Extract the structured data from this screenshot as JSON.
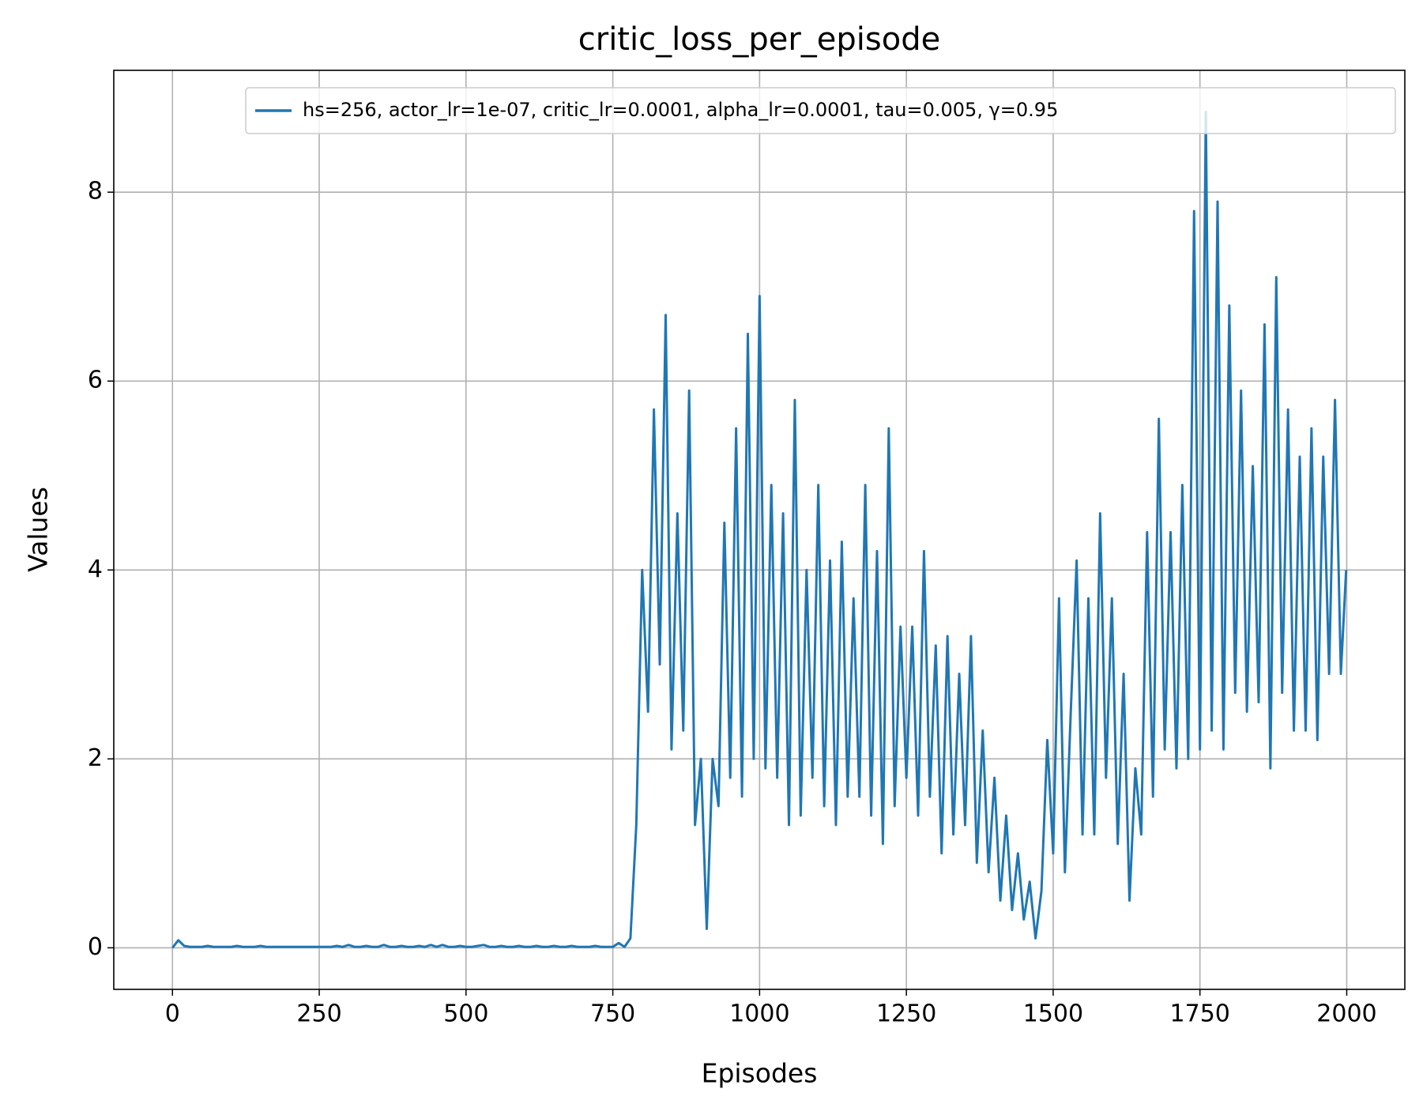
{
  "chart_data": {
    "type": "line",
    "title": "critic_loss_per_episode",
    "x_label": "Episodes",
    "y_label": "Values",
    "x": [
      0,
      10,
      20,
      30,
      40,
      50,
      60,
      70,
      80,
      90,
      100,
      110,
      120,
      130,
      140,
      150,
      160,
      170,
      180,
      190,
      200,
      210,
      220,
      230,
      240,
      250,
      260,
      270,
      280,
      290,
      300,
      310,
      320,
      330,
      340,
      350,
      360,
      370,
      380,
      390,
      400,
      410,
      420,
      430,
      440,
      450,
      460,
      470,
      480,
      490,
      500,
      510,
      520,
      530,
      540,
      550,
      560,
      570,
      580,
      590,
      600,
      610,
      620,
      630,
      640,
      650,
      660,
      670,
      680,
      690,
      700,
      710,
      720,
      730,
      740,
      750,
      760,
      770,
      780,
      790,
      800,
      810,
      820,
      830,
      840,
      850,
      860,
      870,
      880,
      890,
      900,
      910,
      920,
      930,
      940,
      950,
      960,
      970,
      980,
      990,
      1000,
      1010,
      1020,
      1030,
      1040,
      1050,
      1060,
      1070,
      1080,
      1090,
      1100,
      1110,
      1120,
      1130,
      1140,
      1150,
      1160,
      1170,
      1180,
      1190,
      1200,
      1210,
      1220,
      1230,
      1240,
      1250,
      1260,
      1270,
      1280,
      1290,
      1300,
      1310,
      1320,
      1330,
      1340,
      1350,
      1360,
      1370,
      1380,
      1390,
      1400,
      1410,
      1420,
      1430,
      1440,
      1450,
      1460,
      1470,
      1480,
      1490,
      1500,
      1510,
      1520,
      1530,
      1540,
      1550,
      1560,
      1570,
      1580,
      1590,
      1600,
      1610,
      1620,
      1630,
      1640,
      1650,
      1660,
      1670,
      1680,
      1690,
      1700,
      1710,
      1720,
      1730,
      1740,
      1750,
      1760,
      1770,
      1780,
      1790,
      1800,
      1810,
      1820,
      1830,
      1840,
      1850,
      1860,
      1870,
      1880,
      1890,
      1900,
      1910,
      1920,
      1930,
      1940,
      1950,
      1960,
      1970,
      1980,
      1990,
      1999
    ],
    "series": [
      {
        "name": "hs=256, actor_lr=1e-07, critic_lr=0.0001, alpha_lr=0.0001, tau=0.005, γ=0.95",
        "color": "#1f77b4",
        "values": [
          0.0,
          0.08,
          0.02,
          0.01,
          0.01,
          0.01,
          0.02,
          0.01,
          0.01,
          0.01,
          0.01,
          0.02,
          0.01,
          0.01,
          0.01,
          0.02,
          0.01,
          0.01,
          0.01,
          0.01,
          0.01,
          0.01,
          0.01,
          0.01,
          0.01,
          0.01,
          0.01,
          0.01,
          0.02,
          0.01,
          0.03,
          0.01,
          0.01,
          0.02,
          0.01,
          0.01,
          0.03,
          0.01,
          0.01,
          0.02,
          0.01,
          0.01,
          0.02,
          0.01,
          0.03,
          0.01,
          0.03,
          0.01,
          0.01,
          0.02,
          0.01,
          0.01,
          0.02,
          0.03,
          0.01,
          0.01,
          0.02,
          0.01,
          0.01,
          0.02,
          0.01,
          0.01,
          0.02,
          0.01,
          0.01,
          0.02,
          0.01,
          0.01,
          0.02,
          0.01,
          0.01,
          0.01,
          0.02,
          0.01,
          0.01,
          0.01,
          0.05,
          0.01,
          0.1,
          1.3,
          4.0,
          2.5,
          5.7,
          3.0,
          6.7,
          2.1,
          4.6,
          2.3,
          5.9,
          1.3,
          2.0,
          0.2,
          2.0,
          1.5,
          4.5,
          1.8,
          5.5,
          1.6,
          6.5,
          2.0,
          6.9,
          1.9,
          4.9,
          1.8,
          4.6,
          1.3,
          5.8,
          1.4,
          4.0,
          1.8,
          4.9,
          1.5,
          4.1,
          1.3,
          4.3,
          1.6,
          3.7,
          1.6,
          4.9,
          1.4,
          4.2,
          1.1,
          5.5,
          1.5,
          3.4,
          1.8,
          3.4,
          1.4,
          4.2,
          1.6,
          3.2,
          1.0,
          3.3,
          1.2,
          2.9,
          1.3,
          3.3,
          0.9,
          2.3,
          0.8,
          1.8,
          0.5,
          1.4,
          0.4,
          1.0,
          0.3,
          0.7,
          0.1,
          0.6,
          2.2,
          1.0,
          3.7,
          0.8,
          2.5,
          4.1,
          1.2,
          3.7,
          1.2,
          4.6,
          1.8,
          3.7,
          1.1,
          2.9,
          0.5,
          1.9,
          1.2,
          4.4,
          1.6,
          5.6,
          2.1,
          4.4,
          1.9,
          4.9,
          2.0,
          7.8,
          2.1,
          8.85,
          2.3,
          7.9,
          2.1,
          6.8,
          2.7,
          5.9,
          2.5,
          5.1,
          2.6,
          6.6,
          1.9,
          7.1,
          2.7,
          5.7,
          2.3,
          5.2,
          2.3,
          5.5,
          2.2,
          5.2,
          2.9,
          5.8,
          2.9,
          4.0
        ]
      }
    ],
    "xlim": [
      -99.95,
      2098.95
    ],
    "ylim": [
      -0.44,
      9.29
    ],
    "xticks": [
      0,
      250,
      500,
      750,
      1000,
      1250,
      1500,
      1750,
      2000
    ],
    "yticks": [
      0,
      2,
      4,
      6,
      8
    ],
    "grid": true,
    "legend": "upper right"
  }
}
